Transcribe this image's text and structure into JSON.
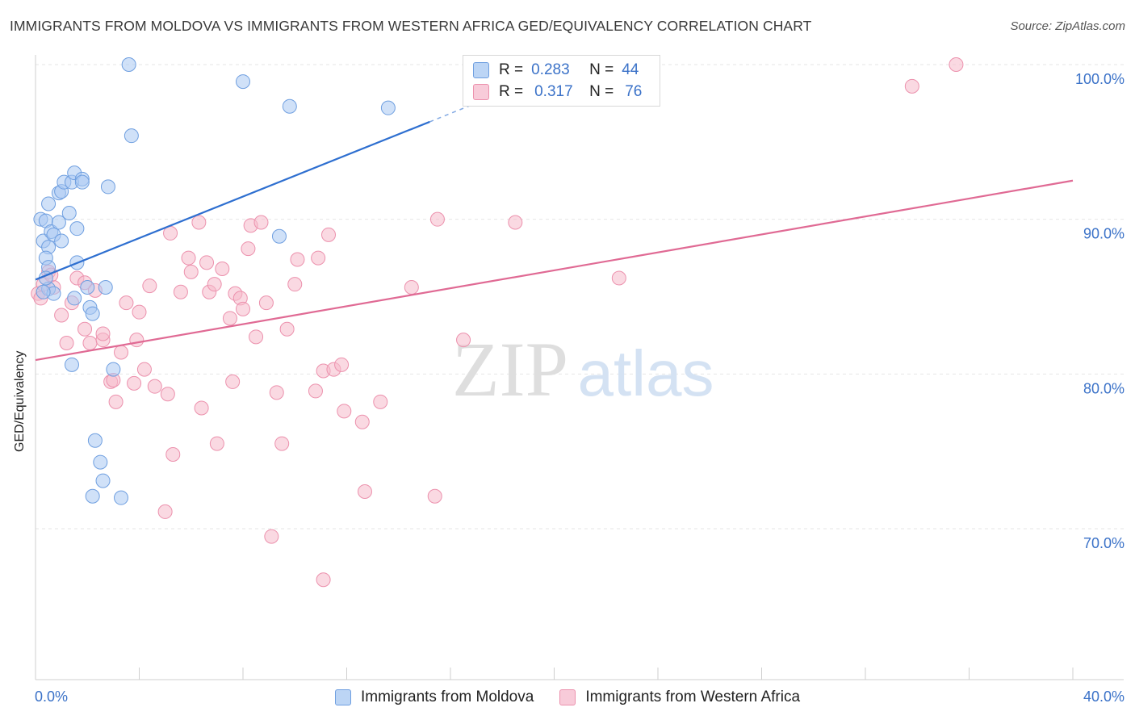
{
  "header": {
    "title": "IMMIGRANTS FROM MOLDOVA VS IMMIGRANTS FROM WESTERN AFRICA GED/EQUIVALENCY CORRELATION CHART",
    "source": "Source: ZipAtlas.com"
  },
  "legend": {
    "rows": [
      {
        "r_label": "R =",
        "r_value": "0.283",
        "n_label": "N =",
        "n_value": "44"
      },
      {
        "r_label": "R =",
        "r_value": "0.317",
        "n_label": "N =",
        "n_value": "76"
      }
    ]
  },
  "watermark": {
    "zip": "ZIP",
    "atlas": "atlas"
  },
  "colors": {
    "series1_fill": "#a9c8f2",
    "series1_stroke": "#6f9fe0",
    "series1_line": "#2e6fd0",
    "series2_fill": "#f6b9cb",
    "series2_stroke": "#ec91ad",
    "series2_line": "#e06a94",
    "axis_label": "#3b72c8",
    "grid": "#e6e6e6"
  },
  "chart_data": {
    "type": "scatter",
    "title": "IMMIGRANTS FROM MOLDOVA VS IMMIGRANTS FROM WESTERN AFRICA GED/EQUIVALENCY CORRELATION CHART",
    "xlabel": "",
    "ylabel": "GED/Equivalency",
    "xlim": [
      0,
      40
    ],
    "ylim": [
      60,
      102
    ],
    "x_tick_labels": [
      "0.0%",
      "40.0%"
    ],
    "y_ticks": [
      70,
      80,
      90,
      100
    ],
    "y_tick_labels": [
      "70.0%",
      "80.0%",
      "90.0%",
      "100.0%"
    ],
    "grid": true,
    "legend_position": "top-center",
    "series": [
      {
        "name": "Immigrants from Moldova",
        "r": 0.283,
        "n": 44,
        "trend": {
          "x": [
            0,
            15.2
          ],
          "y": [
            86.1,
            96.3
          ],
          "dashed_to": {
            "x": 19.8,
            "y": 99.4
          }
        },
        "points": [
          [
            0.2,
            90.0
          ],
          [
            0.4,
            89.9
          ],
          [
            0.3,
            88.6
          ],
          [
            0.5,
            88.2
          ],
          [
            0.6,
            89.2
          ],
          [
            0.7,
            89.0
          ],
          [
            0.4,
            87.5
          ],
          [
            0.5,
            86.9
          ],
          [
            0.5,
            85.5
          ],
          [
            0.7,
            85.2
          ],
          [
            0.5,
            91.0
          ],
          [
            0.9,
            91.7
          ],
          [
            1.0,
            91.8
          ],
          [
            1.1,
            92.4
          ],
          [
            1.4,
            92.4
          ],
          [
            1.5,
            93.0
          ],
          [
            1.8,
            92.6
          ],
          [
            1.8,
            92.4
          ],
          [
            1.3,
            90.4
          ],
          [
            0.9,
            89.8
          ],
          [
            1.0,
            88.6
          ],
          [
            1.6,
            89.4
          ],
          [
            1.6,
            87.2
          ],
          [
            2.0,
            85.6
          ],
          [
            2.1,
            84.3
          ],
          [
            1.5,
            84.9
          ],
          [
            2.2,
            83.9
          ],
          [
            2.8,
            92.1
          ],
          [
            2.7,
            85.6
          ],
          [
            3.7,
            95.4
          ],
          [
            3.6,
            100.0
          ],
          [
            8.0,
            98.9
          ],
          [
            9.8,
            97.3
          ],
          [
            13.6,
            97.2
          ],
          [
            9.4,
            88.9
          ],
          [
            1.4,
            80.6
          ],
          [
            3.0,
            80.3
          ],
          [
            2.3,
            75.7
          ],
          [
            2.5,
            74.3
          ],
          [
            2.6,
            73.1
          ],
          [
            2.2,
            72.1
          ],
          [
            3.3,
            72.0
          ],
          [
            0.3,
            85.3
          ],
          [
            0.4,
            86.2
          ]
        ]
      },
      {
        "name": "Immigrants from Western Africa",
        "r": 0.317,
        "n": 76,
        "trend": {
          "x": [
            0,
            40
          ],
          "y": [
            80.9,
            92.5
          ]
        },
        "points": [
          [
            0.1,
            85.2
          ],
          [
            0.3,
            85.8
          ],
          [
            0.5,
            86.6
          ],
          [
            0.7,
            85.6
          ],
          [
            1.0,
            83.8
          ],
          [
            1.2,
            82.0
          ],
          [
            1.4,
            84.6
          ],
          [
            1.6,
            86.2
          ],
          [
            1.9,
            85.9
          ],
          [
            1.9,
            82.9
          ],
          [
            2.1,
            82.0
          ],
          [
            2.3,
            85.4
          ],
          [
            2.6,
            82.2
          ],
          [
            2.6,
            82.6
          ],
          [
            2.9,
            79.5
          ],
          [
            3.0,
            79.6
          ],
          [
            3.1,
            78.2
          ],
          [
            3.3,
            81.4
          ],
          [
            3.5,
            84.6
          ],
          [
            3.8,
            79.4
          ],
          [
            3.9,
            82.2
          ],
          [
            4.0,
            84.0
          ],
          [
            4.2,
            80.3
          ],
          [
            4.4,
            85.7
          ],
          [
            4.6,
            79.2
          ],
          [
            5.1,
            78.7
          ],
          [
            5.2,
            89.1
          ],
          [
            5.6,
            85.3
          ],
          [
            5.9,
            87.5
          ],
          [
            6.0,
            86.6
          ],
          [
            6.4,
            77.8
          ],
          [
            6.3,
            89.8
          ],
          [
            6.6,
            87.2
          ],
          [
            6.7,
            85.3
          ],
          [
            6.9,
            85.8
          ],
          [
            7.0,
            75.5
          ],
          [
            7.2,
            86.8
          ],
          [
            7.5,
            83.6
          ],
          [
            7.6,
            79.5
          ],
          [
            7.7,
            85.2
          ],
          [
            7.9,
            84.9
          ],
          [
            8.0,
            84.2
          ],
          [
            8.2,
            88.1
          ],
          [
            8.3,
            89.6
          ],
          [
            8.5,
            82.4
          ],
          [
            8.7,
            89.8
          ],
          [
            8.9,
            84.6
          ],
          [
            9.1,
            69.5
          ],
          [
            9.3,
            78.8
          ],
          [
            9.5,
            75.5
          ],
          [
            9.7,
            82.9
          ],
          [
            10.0,
            85.8
          ],
          [
            10.1,
            87.4
          ],
          [
            10.8,
            78.9
          ],
          [
            10.9,
            87.5
          ],
          [
            11.1,
            80.2
          ],
          [
            11.3,
            89.0
          ],
          [
            11.5,
            80.3
          ],
          [
            11.8,
            80.6
          ],
          [
            11.9,
            77.6
          ],
          [
            11.1,
            66.7
          ],
          [
            12.6,
            76.9
          ],
          [
            12.7,
            72.4
          ],
          [
            13.3,
            78.2
          ],
          [
            14.5,
            85.6
          ],
          [
            15.5,
            90.0
          ],
          [
            15.4,
            72.1
          ],
          [
            16.5,
            82.2
          ],
          [
            18.5,
            89.8
          ],
          [
            22.5,
            86.2
          ],
          [
            33.8,
            98.6
          ],
          [
            35.5,
            100.0
          ],
          [
            0.2,
            84.9
          ],
          [
            0.6,
            86.4
          ],
          [
            5.0,
            71.1
          ],
          [
            5.3,
            74.8
          ]
        ]
      }
    ]
  },
  "bottom_legend": {
    "items": [
      {
        "label": "Immigrants from Moldova"
      },
      {
        "label": "Immigrants from Western Africa"
      }
    ]
  },
  "axes": {
    "x_min_label": "0.0%",
    "x_max_label": "40.0%"
  }
}
